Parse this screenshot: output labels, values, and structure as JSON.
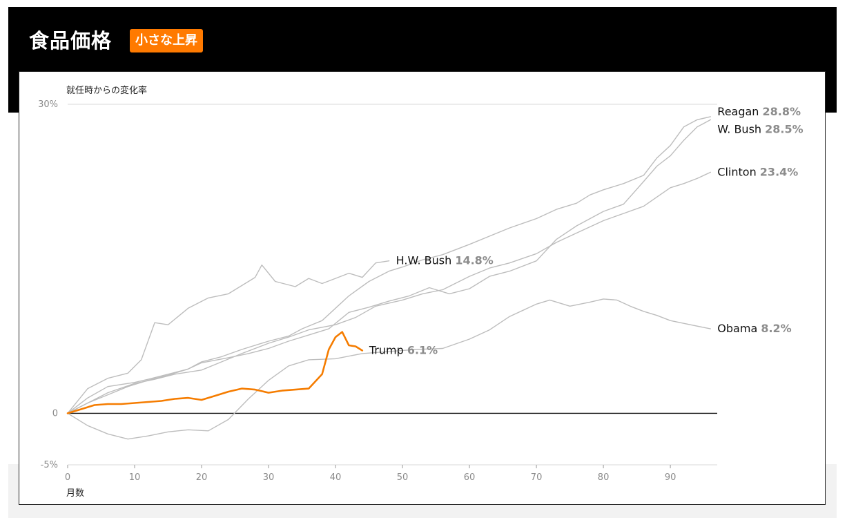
{
  "header": {
    "title": "食品価格",
    "badge": "小さな上昇"
  },
  "colors": {
    "header_bg": "#000000",
    "badge_bg": "#ff7a00",
    "trump": "#f57c00",
    "other_presidents": "#bdbdbd",
    "value_text": "#8c8c8c",
    "gridline": "#d9d9d9",
    "zero_line": "#111111"
  },
  "chart_data": {
    "type": "line",
    "ylabel": "就任時からの変化率",
    "xlabel": "月数",
    "xlim": [
      0,
      97
    ],
    "ylim": [
      -5,
      30
    ],
    "x_ticks": [
      "0",
      "10",
      "20",
      "30",
      "40",
      "50",
      "60",
      "70",
      "80",
      "90"
    ],
    "y_ticks": [
      "30%",
      "0",
      "-5%"
    ],
    "grid": "horizontal at 30% only; zero baseline",
    "series": [
      {
        "name": "Reagan",
        "label": "Reagan",
        "value_label": "28.8%",
        "x": [
          0,
          3,
          6,
          10,
          12,
          15,
          18,
          20,
          23,
          26,
          30,
          33,
          35,
          38,
          40,
          42,
          45,
          48,
          50,
          53,
          56,
          60,
          63,
          66,
          70,
          73,
          76,
          78,
          80,
          83,
          86,
          88,
          90,
          92,
          94,
          96
        ],
        "y": [
          0,
          1.5,
          2.6,
          3.0,
          3.3,
          3.8,
          4.3,
          5.0,
          5.5,
          6.2,
          7.0,
          7.5,
          8.2,
          9.0,
          10.2,
          11.4,
          12.8,
          13.8,
          14.2,
          14.9,
          15.4,
          16.4,
          17.2,
          18.0,
          18.9,
          19.8,
          20.4,
          21.2,
          21.7,
          22.3,
          23.1,
          24.8,
          26.0,
          27.8,
          28.5,
          28.8
        ]
      },
      {
        "name": "W. Bush",
        "label": "W. Bush",
        "value_label": "28.5%",
        "x": [
          0,
          3,
          6,
          9,
          12,
          15,
          18,
          20,
          24,
          27,
          30,
          33,
          36,
          39,
          42,
          45,
          48,
          51,
          54,
          57,
          60,
          63,
          66,
          70,
          73,
          76,
          80,
          83,
          86,
          88,
          90,
          92,
          94,
          96
        ],
        "y": [
          0,
          1.0,
          1.8,
          2.6,
          3.2,
          3.7,
          4.3,
          4.9,
          5.4,
          5.8,
          6.3,
          7.0,
          7.6,
          8.2,
          9.8,
          10.3,
          10.9,
          11.4,
          12.2,
          11.6,
          12.1,
          13.3,
          13.8,
          14.8,
          16.9,
          18.2,
          19.6,
          20.3,
          22.5,
          24.0,
          25.0,
          26.5,
          27.8,
          28.5
        ]
      },
      {
        "name": "Clinton",
        "label": "Clinton",
        "value_label": "23.4%",
        "x": [
          0,
          3,
          6,
          10,
          13,
          16,
          20,
          23,
          26,
          30,
          33,
          36,
          40,
          43,
          46,
          50,
          53,
          56,
          60,
          63,
          66,
          70,
          73,
          76,
          80,
          83,
          86,
          88,
          90,
          92,
          94,
          96
        ],
        "y": [
          0,
          1.0,
          2.0,
          2.9,
          3.3,
          3.8,
          4.2,
          5.0,
          5.8,
          6.8,
          7.4,
          8.1,
          8.6,
          9.3,
          10.4,
          11.0,
          11.6,
          12.0,
          13.3,
          14.1,
          14.6,
          15.5,
          16.6,
          17.5,
          18.7,
          19.4,
          20.1,
          21.0,
          21.9,
          22.3,
          22.8,
          23.4
        ]
      },
      {
        "name": "H.W. Bush",
        "label": "H.W. Bush",
        "value_label": "14.8%",
        "x": [
          0,
          3,
          6,
          9,
          11,
          13,
          15,
          18,
          21,
          24,
          26,
          28,
          29,
          31,
          34,
          36,
          38,
          40,
          42,
          44,
          46,
          48
        ],
        "y": [
          0,
          2.4,
          3.4,
          3.9,
          5.2,
          8.8,
          8.6,
          10.2,
          11.2,
          11.6,
          12.4,
          13.2,
          14.4,
          12.8,
          12.3,
          13.1,
          12.6,
          13.1,
          13.6,
          13.2,
          14.6,
          14.8
        ]
      },
      {
        "name": "Obama",
        "label": "Obama",
        "value_label": "8.2%",
        "x": [
          0,
          3,
          6,
          9,
          12,
          15,
          18,
          21,
          24,
          27,
          30,
          33,
          36,
          40,
          44,
          48,
          52,
          56,
          60,
          63,
          66,
          70,
          72,
          75,
          78,
          80,
          82,
          84,
          86,
          88,
          90,
          93,
          96
        ],
        "y": [
          0,
          -1.2,
          -2.0,
          -2.5,
          -2.2,
          -1.8,
          -1.6,
          -1.7,
          -0.6,
          1.4,
          3.2,
          4.6,
          5.2,
          5.3,
          5.8,
          6.0,
          6.2,
          6.3,
          7.2,
          8.1,
          9.4,
          10.6,
          11.0,
          10.4,
          10.8,
          11.1,
          11.0,
          10.4,
          9.9,
          9.5,
          9.0,
          8.6,
          8.2
        ]
      },
      {
        "name": "Trump",
        "label": "Trump",
        "value_label": "6.1%",
        "x": [
          0,
          2,
          4,
          6,
          8,
          10,
          12,
          14,
          16,
          18,
          20,
          22,
          24,
          26,
          28,
          30,
          32,
          34,
          36,
          38,
          39,
          40,
          41,
          42,
          43,
          44
        ],
        "y": [
          0,
          0.4,
          0.8,
          0.9,
          0.9,
          1.0,
          1.1,
          1.2,
          1.4,
          1.5,
          1.3,
          1.7,
          2.1,
          2.4,
          2.3,
          2.0,
          2.2,
          2.3,
          2.4,
          3.8,
          6.2,
          7.4,
          7.9,
          6.6,
          6.5,
          6.1
        ]
      }
    ]
  }
}
